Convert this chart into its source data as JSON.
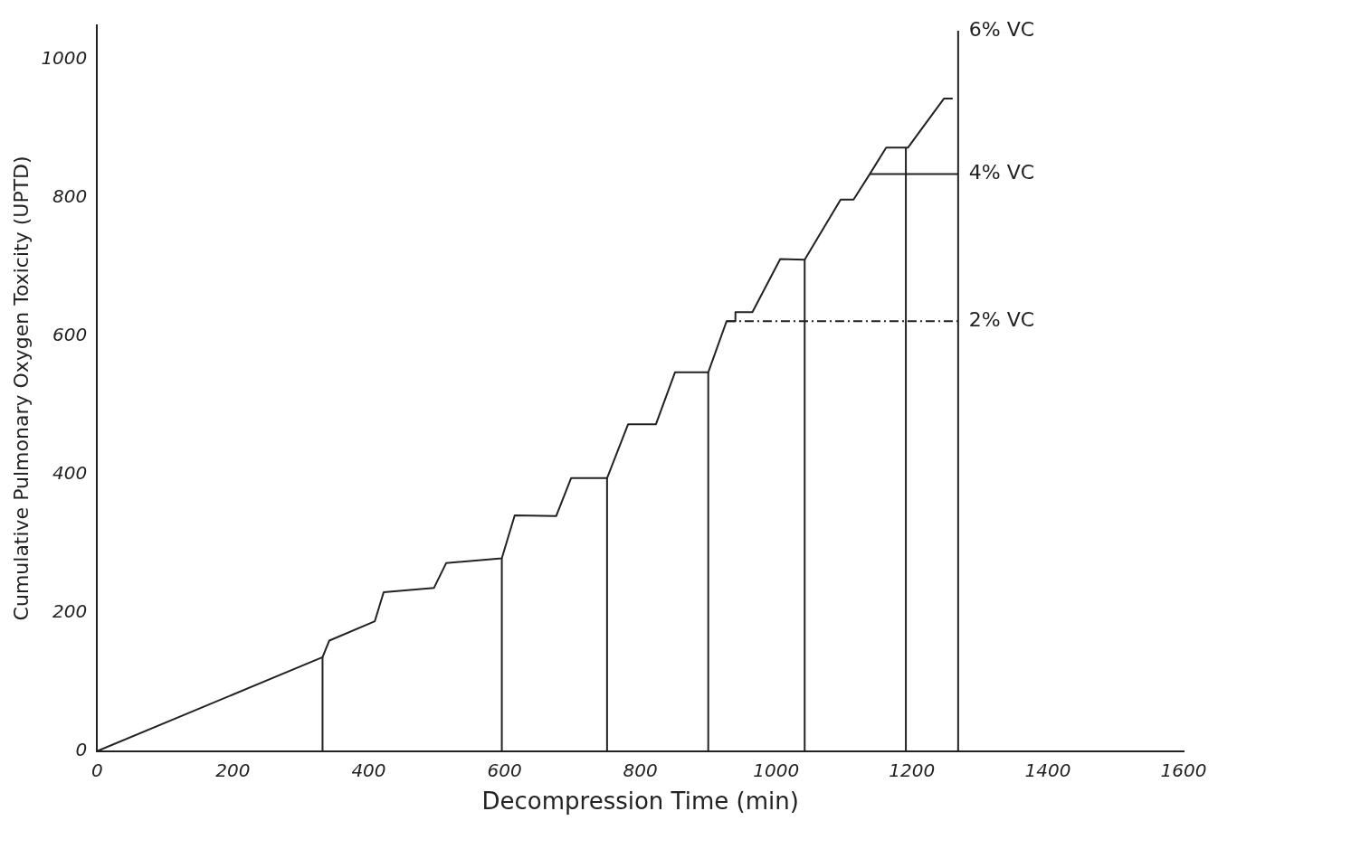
{
  "chart_data": {
    "type": "line",
    "xlabel": "Decompression Time (min)",
    "ylabel": "Cumulative Pulmonary Oxygen Toxicity (UPTD)",
    "xlim": [
      0,
      1600
    ],
    "ylim": [
      0,
      1050
    ],
    "xticks": [
      0,
      200,
      400,
      600,
      800,
      1000,
      1200,
      1400,
      1600
    ],
    "yticks": [
      0,
      200,
      400,
      600,
      800,
      1000
    ],
    "grid": false,
    "legend": false,
    "marker": "none",
    "series": [
      {
        "color": "#222222",
        "x": [
          0,
          332,
          342,
          409,
          422,
          496,
          514,
          596,
          615,
          676,
          698,
          751,
          782,
          823,
          851,
          900,
          927,
          940,
          940,
          965,
          1006,
          1042,
          1095,
          1114,
          1138,
          1162,
          1194,
          1247,
          1260
        ],
        "values": [
          0,
          136,
          160,
          188,
          230,
          236,
          272,
          279,
          341,
          340,
          395,
          395,
          473,
          473,
          548,
          548,
          622,
          622,
          635,
          635,
          712,
          711,
          798,
          798,
          835,
          873,
          873,
          944,
          944
        ]
      },
      {
        "color": "#222222",
        "x": [
          332,
          332
        ],
        "values": [
          0,
          136
        ]
      },
      {
        "color": "#222222",
        "x": [
          596,
          596
        ],
        "values": [
          0,
          279
        ]
      },
      {
        "color": "#222222",
        "x": [
          751,
          751
        ],
        "values": [
          0,
          395
        ]
      },
      {
        "color": "#222222",
        "x": [
          900,
          900
        ],
        "values": [
          0,
          548
        ]
      },
      {
        "color": "#222222",
        "x": [
          1042,
          1042
        ],
        "values": [
          0,
          711
        ]
      },
      {
        "color": "#222222",
        "x": [
          1191,
          1191
        ],
        "values": [
          0,
          873
        ]
      },
      {
        "name": "6% VC",
        "color": "#222222",
        "x": [
          1268,
          1268
        ],
        "values": [
          0,
          1042
        ]
      },
      {
        "name": "2% VC",
        "color": "#222222",
        "x": [
          927,
          1268
        ],
        "values": [
          622,
          622
        ],
        "line_style": "dashed"
      },
      {
        "name": "4% VC",
        "color": "#222222",
        "x": [
          1138,
          1268
        ],
        "values": [
          835,
          835
        ]
      }
    ]
  }
}
